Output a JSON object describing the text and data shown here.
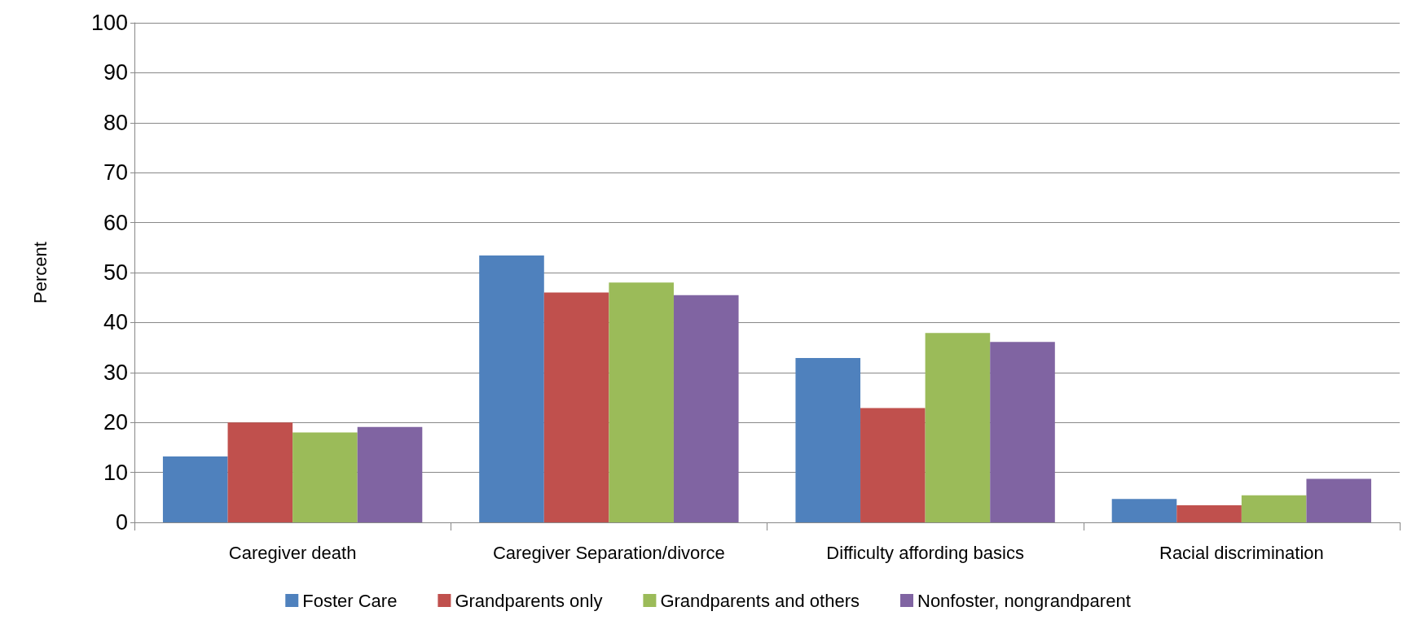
{
  "chart_data": {
    "type": "bar",
    "ylabel": "Percent",
    "categories": [
      "Caregiver death",
      "Caregiver Separation/divorce",
      "Difficulty affording basics",
      "Racial discrimination"
    ],
    "series": [
      {
        "name": "Foster Care",
        "color": "#4f81bd",
        "values": [
          13.2,
          53.4,
          32.9,
          4.7
        ]
      },
      {
        "name": "Grandparents only",
        "color": "#c0504d",
        "values": [
          20.0,
          46.0,
          22.9,
          3.4
        ]
      },
      {
        "name": "Grandparents and others",
        "color": "#9bbb59",
        "values": [
          18.0,
          48.0,
          37.9,
          5.4
        ]
      },
      {
        "name": "Nonfoster, nongrandparent",
        "color": "#8064a2",
        "values": [
          19.1,
          45.5,
          36.1,
          8.7
        ]
      }
    ],
    "ylim": [
      0,
      100
    ],
    "yticks": [
      0,
      10,
      20,
      30,
      40,
      50,
      60,
      70,
      80,
      90,
      100
    ],
    "grid": "y",
    "legend": "bottom"
  }
}
